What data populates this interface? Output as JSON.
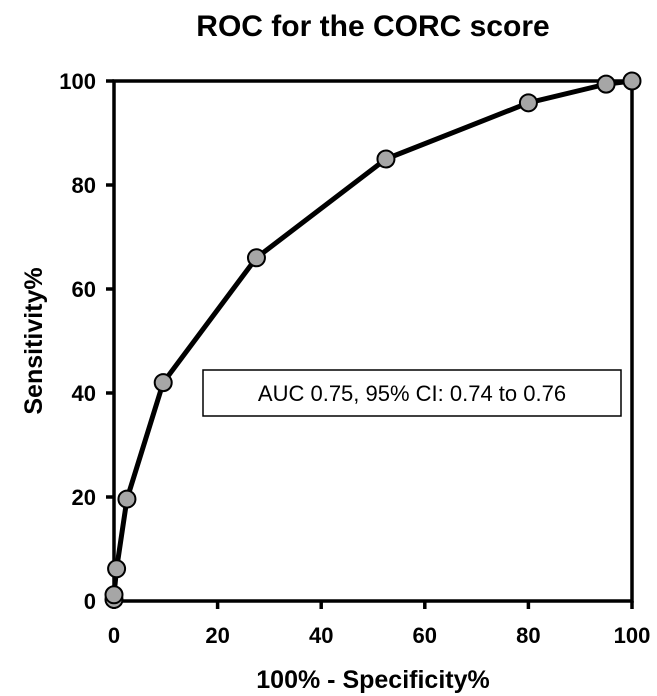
{
  "chart_data": {
    "type": "line",
    "title": "ROC for the CORC score",
    "xlabel": "100% - Specificity%",
    "ylabel": "Sensitivity%",
    "xlim": [
      0,
      100
    ],
    "ylim": [
      0,
      100
    ],
    "x_ticks": [
      0,
      20,
      40,
      60,
      80,
      100
    ],
    "y_ticks": [
      0,
      20,
      40,
      60,
      80,
      100
    ],
    "grid": false,
    "legend": "none",
    "series": [
      {
        "x": [
          0,
          0,
          0.5,
          2.5,
          9.5,
          27.5,
          52.5,
          80,
          95,
          100
        ],
        "y": [
          0.3,
          1.2,
          6.2,
          19.6,
          42,
          66,
          85,
          95.8,
          99.4,
          100
        ],
        "line_color": "#000000",
        "marker_color": "#a6a6a6"
      }
    ],
    "annotations": [
      {
        "text": "AUC 0.75, 95% CI: 0.74 to 0.76"
      }
    ]
  }
}
